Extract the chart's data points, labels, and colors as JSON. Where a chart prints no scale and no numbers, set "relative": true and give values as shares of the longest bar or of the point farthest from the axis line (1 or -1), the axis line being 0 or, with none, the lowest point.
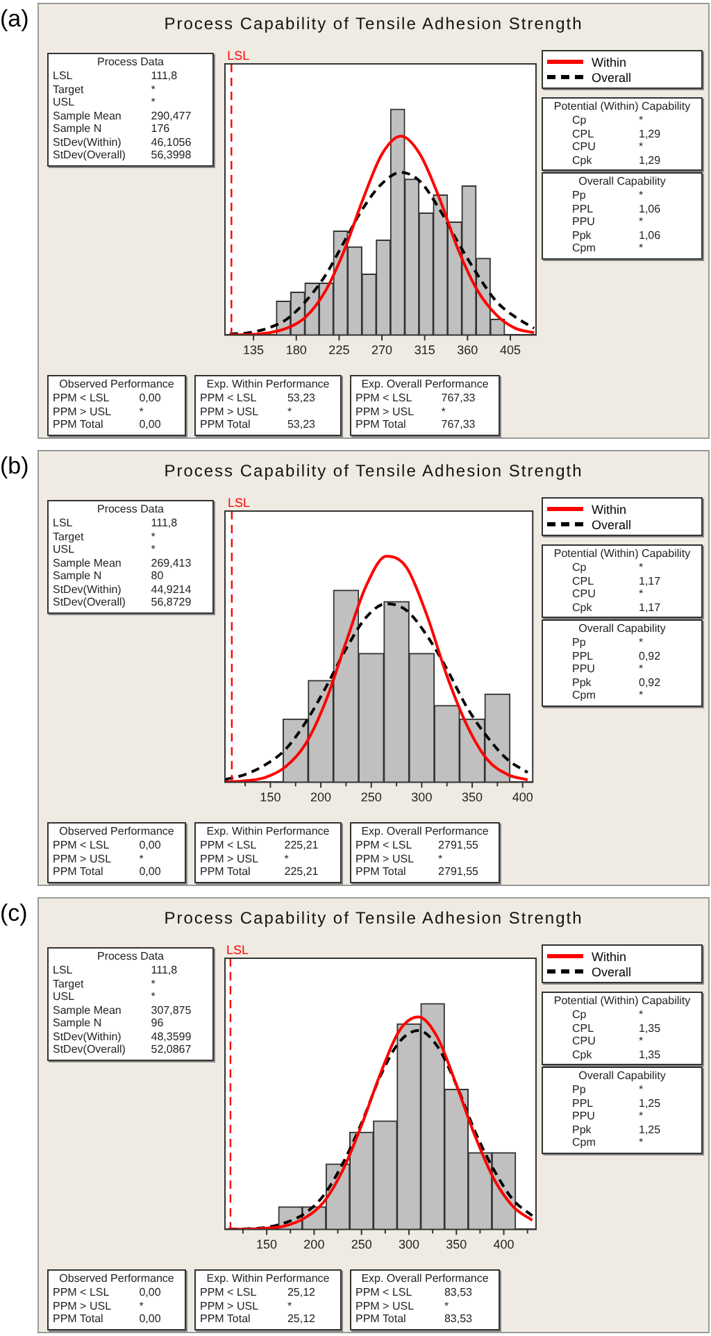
{
  "chart_data": [
    {
      "type": "histogram",
      "title": "Process Capability of Tensile Adhesion Strength",
      "relative": true,
      "legend": "top right",
      "xlim": [
        105,
        432
      ],
      "xticks": [
        135,
        180,
        225,
        270,
        315,
        360,
        405
      ],
      "ref_lines": [
        {
          "axis": "x",
          "value": 111.8,
          "label": "LSL",
          "color": "#ff0000",
          "line_style": "dashed"
        }
      ],
      "series": [
        {
          "color": "#c0c0c0",
          "bins": [
            159,
            174,
            189,
            204,
            219,
            234,
            249,
            264,
            279,
            294,
            309,
            324,
            339,
            354,
            369,
            384,
            399
          ],
          "values": [
            0.15,
            0.19,
            0.23,
            0.23,
            0.46,
            0.39,
            0.27,
            0.42,
            1,
            0.69,
            0.54,
            0.62,
            0.5,
            0.66,
            0.34,
            0.07
          ]
        },
        {
          "type": "line",
          "name": "Within",
          "color": "#ff0000",
          "x": [
            110,
            130,
            150,
            170,
            190,
            210,
            230,
            250,
            270,
            290,
            310,
            330,
            350,
            370,
            390,
            410,
            430
          ],
          "values": [
            0,
            0.002,
            0.009,
            0.03,
            0.08,
            0.19,
            0.37,
            0.6,
            0.8,
            0.88,
            0.8,
            0.61,
            0.38,
            0.2,
            0.09,
            0.03,
            0.01
          ]
        },
        {
          "type": "line",
          "name": "Overall",
          "color": "#000000",
          "line_style": "dashed",
          "x": [
            110,
            130,
            150,
            170,
            190,
            210,
            230,
            250,
            270,
            290,
            310,
            330,
            350,
            370,
            390,
            410,
            430
          ],
          "values": [
            0.004,
            0.01,
            0.03,
            0.07,
            0.15,
            0.26,
            0.41,
            0.56,
            0.67,
            0.72,
            0.68,
            0.56,
            0.41,
            0.27,
            0.15,
            0.08,
            0.03
          ]
        }
      ],
      "annotations": [
        "(a)",
        "Process Data",
        "LSL",
        "111,8",
        "Target",
        "*",
        "USL",
        "*",
        "Sample Mean",
        "290,477",
        "Sample N",
        "176",
        "StDev(Within)",
        "46,1056",
        "StDev(Overall)",
        "56,3998",
        "Potential (Within) Capability",
        "Cp",
        "*",
        "CPL",
        "1,29",
        "CPU",
        "*",
        "Cpk",
        "1,29",
        "Overall Capability",
        "Pp",
        "*",
        "PPL",
        "1,06",
        "PPU",
        "*",
        "Ppk",
        "1,06",
        "Cpm",
        "*",
        "Observed Performance",
        "PPM < LSL",
        "0,00",
        "PPM > USL",
        "*",
        "PPM Total",
        "0,00",
        "Exp. Within Performance",
        "PPM < LSL",
        "53,23",
        "PPM > USL",
        "*",
        "PPM Total",
        "53,23",
        "Exp. Overall Performance",
        "PPM < LSL",
        "767,33",
        "PPM > USL",
        "*",
        "PPM Total",
        "767,33"
      ]
    },
    {
      "type": "histogram",
      "title": "Process Capability of Tensile Adhesion Strength",
      "relative": true,
      "legend": "top right",
      "xlim": [
        105,
        410
      ],
      "xticks": [
        {
          "value": 125,
          "label": null
        },
        150,
        {
          "value": 175,
          "label": null
        },
        200,
        {
          "value": 225,
          "label": null
        },
        250,
        {
          "value": 275,
          "label": null
        },
        300,
        {
          "value": 325,
          "label": null
        },
        350,
        {
          "value": 375,
          "label": null
        },
        400
      ],
      "ref_lines": [
        {
          "axis": "x",
          "value": 111.8,
          "label": "LSL",
          "color": "#ff0000",
          "line_style": "dashed"
        }
      ],
      "series": [
        {
          "color": "#c0c0c0",
          "bins": [
            162.5,
            187.5,
            212.5,
            237.5,
            262.5,
            287.5,
            312.5,
            337.5,
            362.5,
            387.5
          ],
          "values": [
            0.28,
            0.45,
            0.85,
            0.57,
            0.8,
            0.57,
            0.34,
            0.28,
            0.39
          ]
        },
        {
          "type": "line",
          "name": "Within",
          "color": "#ff0000",
          "x": [
            105,
            125,
            145,
            165,
            185,
            205,
            225,
            245,
            265,
            285,
            305,
            325,
            345,
            365,
            385,
            405
          ],
          "values": [
            0.001,
            0.006,
            0.021,
            0.068,
            0.17,
            0.36,
            0.62,
            0.87,
            1,
            0.95,
            0.74,
            0.47,
            0.25,
            0.1,
            0.034,
            0.01
          ]
        },
        {
          "type": "line",
          "name": "Overall",
          "color": "#000000",
          "line_style": "dashed",
          "x": [
            105,
            125,
            145,
            165,
            185,
            205,
            225,
            245,
            265,
            285,
            305,
            325,
            345,
            365,
            385,
            405
          ],
          "values": [
            0.012,
            0.034,
            0.077,
            0.145,
            0.265,
            0.42,
            0.59,
            0.73,
            0.79,
            0.76,
            0.65,
            0.5,
            0.33,
            0.2,
            0.1,
            0.043
          ]
        }
      ],
      "annotations": [
        "(b)",
        "Process Data",
        "LSL",
        "111,8",
        "Target",
        "*",
        "USL",
        "*",
        "Sample Mean",
        "269,413",
        "Sample N",
        "80",
        "StDev(Within)",
        "44,9214",
        "StDev(Overall)",
        "56,8729",
        "Potential (Within) Capability",
        "Cp",
        "*",
        "CPL",
        "1,17",
        "CPU",
        "*",
        "Cpk",
        "1,17",
        "Overall Capability",
        "Pp",
        "*",
        "PPL",
        "0,92",
        "PPU",
        "*",
        "Ppk",
        "0,92",
        "Cpm",
        "*",
        "Observed Performance",
        "PPM < LSL",
        "0,00",
        "PPM > USL",
        "*",
        "PPM Total",
        "0,00",
        "Exp. Within Performance",
        "PPM < LSL",
        "225,21",
        "PPM > USL",
        "*",
        "PPM Total",
        "225,21",
        "Exp. Overall Performance",
        "PPM < LSL",
        "2791,55",
        "PPM > USL",
        "*",
        "PPM Total",
        "2791,55"
      ]
    },
    {
      "type": "histogram",
      "title": "Process Capability of Tensile Adhesion Strength",
      "relative": true,
      "legend": "top right",
      "xlim": [
        106,
        434
      ],
      "xticks": [
        {
          "value": 125,
          "label": null
        },
        150,
        {
          "value": 175,
          "label": null
        },
        200,
        {
          "value": 225,
          "label": null
        },
        250,
        {
          "value": 275,
          "label": null
        },
        300,
        {
          "value": 325,
          "label": null
        },
        350,
        {
          "value": 375,
          "label": null
        },
        400,
        {
          "value": 425,
          "label": null
        }
      ],
      "ref_lines": [
        {
          "axis": "x",
          "value": 111.8,
          "label": "LSL",
          "color": "#ff0000",
          "line_style": "dashed"
        }
      ],
      "series": [
        {
          "color": "#c0c0c0",
          "bins": [
            162.5,
            187.5,
            212.5,
            237.5,
            262.5,
            287.5,
            312.5,
            337.5,
            362.5,
            387.5,
            412.5
          ],
          "values": [
            0.1,
            0.1,
            0.29,
            0.43,
            0.48,
            0.91,
            1,
            0.62,
            0.34,
            0.34
          ]
        },
        {
          "type": "line",
          "name": "Within",
          "color": "#ff0000",
          "x": [
            110,
            130,
            150,
            170,
            190,
            210,
            230,
            250,
            270,
            290,
            310,
            330,
            350,
            370,
            390,
            410,
            430
          ],
          "values": [
            0,
            0.001,
            0.005,
            0.016,
            0.05,
            0.12,
            0.26,
            0.46,
            0.69,
            0.88,
            0.94,
            0.85,
            0.64,
            0.41,
            0.22,
            0.1,
            0.04
          ]
        },
        {
          "type": "line",
          "name": "Overall",
          "color": "#000000",
          "line_style": "dashed",
          "x": [
            110,
            130,
            150,
            170,
            190,
            210,
            230,
            250,
            270,
            290,
            310,
            330,
            350,
            370,
            390,
            410,
            430
          ],
          "values": [
            0.001,
            0.003,
            0.009,
            0.03,
            0.07,
            0.15,
            0.29,
            0.47,
            0.68,
            0.83,
            0.88,
            0.81,
            0.64,
            0.43,
            0.26,
            0.13,
            0.06
          ]
        }
      ],
      "annotations": [
        "(c)",
        "Process Data",
        "LSL",
        "111,8",
        "Target",
        "*",
        "USL",
        "*",
        "Sample Mean",
        "307,875",
        "Sample N",
        "96",
        "StDev(Within)",
        "48,3599",
        "StDev(Overall)",
        "52,0867",
        "Potential (Within) Capability",
        "Cp",
        "*",
        "CPL",
        "1,35",
        "CPU",
        "*",
        "Cpk",
        "1,35",
        "Overall Capability",
        "Pp",
        "*",
        "PPL",
        "1,25",
        "PPU",
        "*",
        "Ppk",
        "1,25",
        "Cpm",
        "*",
        "Observed Performance",
        "PPM < LSL",
        "0,00",
        "PPM > USL",
        "*",
        "PPM Total",
        "0,00",
        "Exp. Within Performance",
        "PPM < LSL",
        "25,12",
        "PPM > USL",
        "*",
        "PPM Total",
        "25,12",
        "Exp. Overall Performance",
        "PPM < LSL",
        "83,53",
        "PPM > USL",
        "*",
        "PPM Total",
        "83,53"
      ]
    }
  ]
}
